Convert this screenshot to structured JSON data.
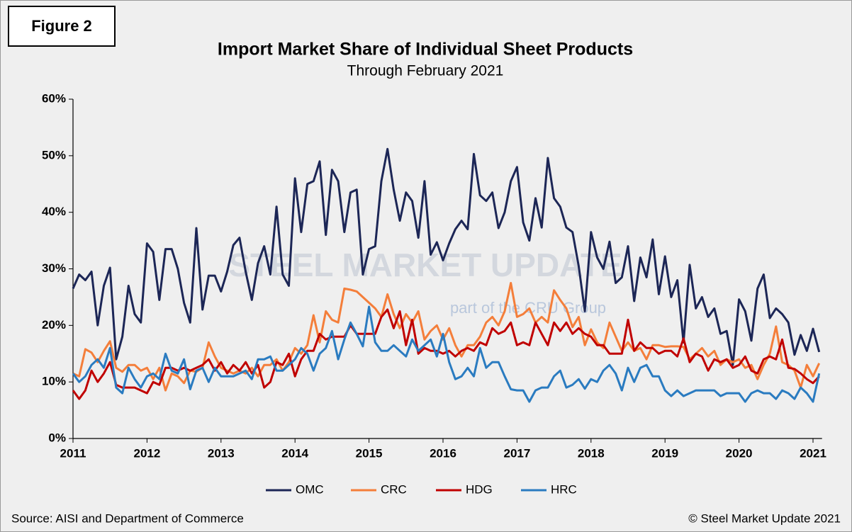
{
  "figure_label": "Figure 2",
  "source": "Source: AISI and Department of Commerce",
  "copyright": "© Steel Market Update 2021",
  "watermark": {
    "brand": "STEEL MARKET UPDATE",
    "tagline": "part of the CRU Group"
  },
  "chart_data": {
    "type": "line",
    "title": "Import Market Share of Individual Sheet Products",
    "subtitle": "Through February 2021",
    "categories": [
      "2011",
      null,
      null,
      null,
      null,
      null,
      null,
      null,
      null,
      null,
      null,
      null,
      "2012",
      null,
      null,
      null,
      null,
      null,
      null,
      null,
      null,
      null,
      null,
      null,
      "2013",
      null,
      null,
      null,
      null,
      null,
      null,
      null,
      null,
      null,
      null,
      null,
      "2014",
      null,
      null,
      null,
      null,
      null,
      null,
      null,
      null,
      null,
      null,
      null,
      "2015",
      null,
      null,
      null,
      null,
      null,
      null,
      null,
      null,
      null,
      null,
      null,
      "2016",
      null,
      null,
      null,
      null,
      null,
      null,
      null,
      null,
      null,
      null,
      null,
      "2017",
      null,
      null,
      null,
      null,
      null,
      null,
      null,
      null,
      null,
      null,
      null,
      "2018",
      null,
      null,
      null,
      null,
      null,
      null,
      null,
      null,
      null,
      null,
      null,
      "2019",
      null,
      null,
      null,
      null,
      null,
      null,
      null,
      null,
      null,
      null,
      null,
      "2020",
      null,
      null,
      null,
      null,
      null,
      null,
      null,
      null,
      null,
      null,
      null,
      "2021",
      null
    ],
    "ylim": [
      0,
      60
    ],
    "yticks": [
      {
        "value": 0,
        "label": "0%"
      },
      {
        "value": 10,
        "label": "10%"
      },
      {
        "value": 20,
        "label": "20%"
      },
      {
        "value": 30,
        "label": "30%"
      },
      {
        "value": 40,
        "label": "40%"
      },
      {
        "value": 50,
        "label": "50%"
      },
      {
        "value": 60,
        "label": "60%"
      }
    ],
    "grid": false,
    "legend": "bottom",
    "series": [
      {
        "name": "OMC",
        "color": "#1c2656",
        "values": [
          26.5,
          29,
          28,
          29.5,
          20,
          27,
          30.2,
          14,
          18,
          27,
          22,
          20.5,
          34.5,
          33,
          24.5,
          33.5,
          33.5,
          30,
          24,
          20.5,
          37.2,
          22.8,
          28.8,
          28.8,
          26,
          29.5,
          34.2,
          35.5,
          29.5,
          24.5,
          31,
          34,
          29,
          41,
          29,
          27,
          46,
          36.5,
          45,
          45.5,
          49,
          36,
          47.5,
          45.5,
          36.5,
          43.5,
          44,
          29,
          33.5,
          34,
          45.5,
          51.2,
          44,
          38.5,
          43.5,
          42,
          35.5,
          45.5,
          32.5,
          34.7,
          31.5,
          34.5,
          37,
          38.5,
          37,
          50.3,
          43,
          42,
          43.5,
          37.2,
          40,
          45.5,
          48,
          38.2,
          35,
          42.5,
          37.3,
          49.6,
          42.5,
          41,
          37.3,
          36.5,
          30.5,
          22.5,
          36.5,
          32,
          30,
          34.8,
          27.5,
          28.5,
          34,
          24.3,
          32,
          28.5,
          35.2,
          25.5,
          32.2,
          25,
          28,
          17,
          30.7,
          23,
          25,
          21.5,
          23,
          18.5,
          19,
          13,
          24.6,
          22.5,
          17.3,
          26.5,
          29,
          21.3,
          23,
          22,
          20.5,
          14.8,
          18.3,
          15.5,
          19.4,
          15.3
        ]
      },
      {
        "name": "CRC",
        "color": "#f47e3a",
        "values": [
          11.5,
          11,
          15.8,
          15.2,
          13.5,
          15.5,
          17.2,
          12.5,
          11.8,
          13,
          13,
          12,
          12.5,
          10.5,
          12.5,
          8.5,
          11.5,
          11,
          9.8,
          12,
          11.8,
          12.5,
          17,
          14.5,
          12.5,
          12,
          11.5,
          12,
          11.5,
          12.5,
          11,
          13,
          13,
          14,
          12,
          13.5,
          16,
          15,
          16.5,
          21.8,
          17,
          22.5,
          21,
          20.5,
          26.5,
          26.3,
          26,
          25,
          24,
          23,
          21.5,
          25.5,
          22,
          19.5,
          22,
          20.5,
          22.5,
          17.5,
          19,
          20,
          17.5,
          19.5,
          16.5,
          14.5,
          16.5,
          16.5,
          18,
          20.5,
          21.5,
          20,
          22.5,
          27.5,
          21.5,
          22,
          23,
          20.5,
          21.5,
          20.5,
          26.2,
          24.5,
          23,
          19.7,
          21.5,
          16.5,
          19.3,
          17,
          16,
          20.5,
          18,
          15.5,
          17,
          15.5,
          16,
          14,
          16.5,
          16.5,
          16.2,
          16.3,
          16.3,
          16.2,
          14,
          15,
          16,
          14.5,
          15.5,
          13,
          14,
          13.5,
          14,
          12.5,
          13,
          10.5,
          13,
          15,
          19.8,
          13.5,
          13,
          12,
          9,
          13,
          11,
          13.3
        ]
      },
      {
        "name": "HDG",
        "color": "#c00000",
        "values": [
          8.5,
          7,
          8.5,
          12,
          10,
          11.5,
          13.5,
          9.5,
          9,
          9,
          9,
          8.5,
          8,
          10,
          9.5,
          12.5,
          12.5,
          12,
          12.5,
          12,
          12.5,
          13,
          14,
          12,
          13.5,
          11.5,
          13,
          12,
          13.5,
          11.5,
          13,
          9,
          10,
          13.5,
          13,
          15,
          11,
          14,
          15.5,
          15.5,
          18.5,
          17.5,
          18,
          18,
          18,
          20,
          18.5,
          18.5,
          18.5,
          18.5,
          21.5,
          22.8,
          19.5,
          22.5,
          16.5,
          21,
          15,
          16,
          15.5,
          15.5,
          15,
          15.5,
          14.5,
          15.5,
          16,
          15.5,
          17,
          16.5,
          19.5,
          18.5,
          19,
          20.5,
          16.5,
          17,
          16.5,
          20.5,
          18.5,
          16.5,
          20.5,
          19,
          20.5,
          18.5,
          19.5,
          18.5,
          18,
          16.5,
          16.5,
          15,
          15,
          15,
          21,
          15.5,
          17,
          16,
          16,
          15,
          15.5,
          15.5,
          14.5,
          17.7,
          13.5,
          15,
          14.5,
          12,
          14,
          13.5,
          14,
          12.5,
          13,
          14.5,
          12,
          11.5,
          14,
          14.5,
          14,
          17.5,
          12.5,
          12.3,
          11.5,
          10.5,
          9.8,
          11
        ]
      },
      {
        "name": "HRC",
        "color": "#2a7bc0",
        "values": [
          11.5,
          10,
          11,
          13,
          14,
          12.5,
          16,
          9,
          8,
          12.5,
          10.5,
          9,
          11,
          11.5,
          10.5,
          15,
          12,
          11.5,
          14,
          8.7,
          12,
          12.5,
          10,
          12.5,
          11,
          11,
          11,
          11.5,
          12,
          10.5,
          14,
          14,
          14.5,
          12,
          12,
          13,
          14,
          16,
          15,
          12,
          15,
          16,
          19,
          14,
          17.5,
          20.5,
          18.5,
          16.3,
          23.3,
          17,
          15.5,
          15.5,
          16.5,
          15.5,
          14.5,
          17.5,
          15.5,
          16.5,
          17.5,
          14.5,
          18.5,
          13.5,
          10.5,
          11,
          12.5,
          11,
          16,
          12.5,
          13.5,
          13.5,
          11,
          8.7,
          8.5,
          8.5,
          6.5,
          8.5,
          9,
          9,
          11,
          12,
          9,
          9.5,
          10.5,
          8.8,
          10.5,
          10,
          12,
          13,
          11.5,
          8.5,
          12.5,
          10,
          12.5,
          13,
          11,
          11,
          8.5,
          7.5,
          8.5,
          7.5,
          8,
          8.5,
          8.5,
          8.5,
          8.5,
          7.5,
          8,
          8,
          8,
          6.5,
          8,
          8.5,
          8,
          8,
          7,
          8.5,
          8,
          7,
          9,
          8,
          6.5,
          11.5
        ]
      }
    ]
  }
}
